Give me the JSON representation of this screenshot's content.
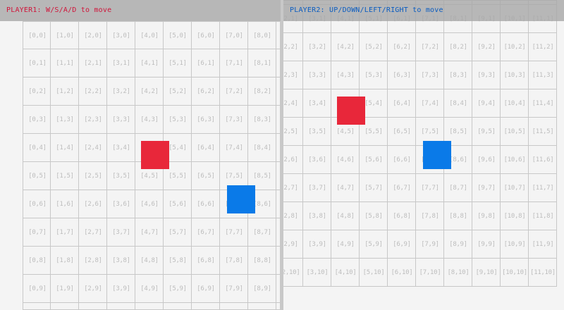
{
  "player1": {
    "label": "PLAYER1: W/S/A/D to move",
    "color": "#e8273a",
    "label_color": "#d0143a"
  },
  "player2": {
    "label": "PLAYER2: UP/DOWN/LEFT/RIGHT to move",
    "color": "#0a7ae8",
    "label_color": "#0a5cc0"
  },
  "grid": {
    "cols": 12,
    "rows": 11,
    "cell_label_format": "[x,y]"
  }
}
